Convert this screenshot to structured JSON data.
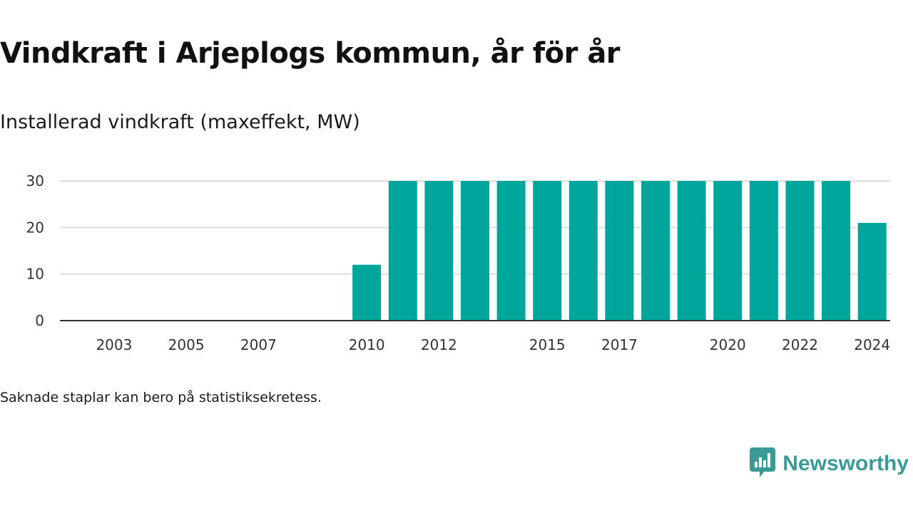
{
  "header": {
    "title": "Vindkraft i Arjeplogs kommun, år för år",
    "subtitle": "Installerad vindkraft (maxeffekt, MW)"
  },
  "footer": {
    "note": "Saknade staplar kan bero på statistiksekretess.",
    "brand": "Newsworthy"
  },
  "colors": {
    "bar": "#00a59b",
    "grid": "#dddddd",
    "axis": "#333333",
    "brand": "#3a9a96"
  },
  "chart_data": {
    "type": "bar",
    "categories": [
      2002,
      2003,
      2004,
      2005,
      2006,
      2007,
      2008,
      2009,
      2010,
      2011,
      2012,
      2013,
      2014,
      2015,
      2016,
      2017,
      2018,
      2019,
      2020,
      2021,
      2022,
      2023,
      2024
    ],
    "values": [
      0,
      0,
      0,
      0,
      0,
      0,
      0,
      0,
      12,
      30,
      30,
      30,
      30,
      30,
      30,
      30,
      30,
      30,
      30,
      30,
      30,
      30,
      21
    ],
    "x_tick_labels": [
      "2003",
      "2005",
      "2007",
      "2010",
      "2012",
      "2015",
      "2017",
      "2020",
      "2022",
      "2024"
    ],
    "y_ticks": [
      0,
      10,
      20,
      30
    ],
    "ylim": [
      0,
      30
    ],
    "xlabel": "",
    "ylabel": "",
    "grid": true
  }
}
